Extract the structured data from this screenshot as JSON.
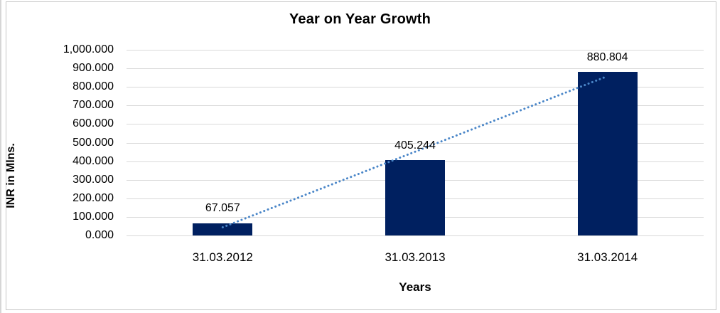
{
  "chart_data": {
    "type": "bar",
    "title": "Year on Year Growth",
    "xlabel": "Years",
    "ylabel": "INR in Mlns.",
    "categories": [
      "31.03.2012",
      "31.03.2013",
      "31.03.2014"
    ],
    "values": [
      67.057,
      405.244,
      880.804
    ],
    "data_labels": [
      "67.057",
      "405.244",
      "880.804"
    ],
    "y_tick_labels": [
      "1,000.000",
      "900.000",
      "800.000",
      "700.000",
      "600.000",
      "500.000",
      "400.000",
      "300.000",
      "200.000",
      "100.000",
      "0.000"
    ],
    "ylim": [
      0,
      1000
    ],
    "y_tick_step": 100,
    "grid": "horizontal",
    "legend": "none",
    "trendline": {
      "type": "linear",
      "style": "dotted"
    },
    "colors": {
      "bar": "#002060",
      "trendline": "#4a86c8",
      "gridline": "#d9d9d9",
      "frame_border": "#c6c6c6",
      "text": "#000000",
      "background": "#ffffff"
    }
  }
}
